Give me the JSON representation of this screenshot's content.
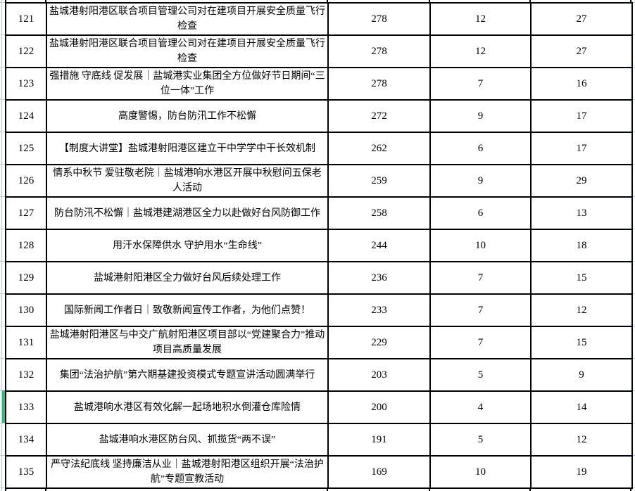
{
  "table": {
    "highlighted_row": "133",
    "rows": [
      {
        "no": "121",
        "title": "盐城港射阳港区联合项目管理公司对在建项目开展安全质量飞行检查",
        "m1": "278",
        "m2": "12",
        "m3": "27"
      },
      {
        "no": "122",
        "title": "盐城港射阳港区联合项目管理公司对在建项目开展安全质量飞行检查",
        "m1": "278",
        "m2": "12",
        "m3": "27"
      },
      {
        "no": "123",
        "title": "强措施 守底线 促发展｜盐城港实业集团全方位做好节日期间“三位一体”工作",
        "m1": "278",
        "m2": "7",
        "m3": "16"
      },
      {
        "no": "124",
        "title": "高度警惕，防台防汛工作不松懈",
        "m1": "272",
        "m2": "9",
        "m3": "17"
      },
      {
        "no": "125",
        "title": "【制度大讲堂】盐城港射阳港区建立干中学学中干长效机制",
        "m1": "262",
        "m2": "6",
        "m3": "17"
      },
      {
        "no": "126",
        "title": "情系中秋节 爱驻敬老院｜盐城港响水港区开展中秋慰问五保老人活动",
        "m1": "259",
        "m2": "9",
        "m3": "29"
      },
      {
        "no": "127",
        "title": "防台防汛不松懈｜盐城港建湖港区全力以赴做好台风防御工作",
        "m1": "258",
        "m2": "6",
        "m3": "13"
      },
      {
        "no": "128",
        "title": "用汗水保障供水 守护用水“生命线”",
        "m1": "244",
        "m2": "10",
        "m3": "18"
      },
      {
        "no": "129",
        "title": "盐城港射阳港区全力做好台风后续处理工作",
        "m1": "236",
        "m2": "7",
        "m3": "15"
      },
      {
        "no": "130",
        "title": "国际新闻工作者日｜致敬新闻宣传工作者，为他们点赞！",
        "m1": "233",
        "m2": "7",
        "m3": "12"
      },
      {
        "no": "131",
        "title": "盐城港射阳港区与中交广航射阳港区项目部以“党建聚合力”推动项目高质量发展",
        "m1": "229",
        "m2": "7",
        "m3": "15"
      },
      {
        "no": "132",
        "title": "集团“法治护航”第六期基建投资模式专题宣讲活动圆满举行",
        "m1": "203",
        "m2": "5",
        "m3": "9"
      },
      {
        "no": "133",
        "title": "盐城港响水港区有效化解一起场地积水倒灌仓库险情",
        "m1": "200",
        "m2": "4",
        "m3": "14"
      },
      {
        "no": "134",
        "title": "盐城港响水港区防台风、抓揽货“两不误”",
        "m1": "191",
        "m2": "5",
        "m3": "12"
      },
      {
        "no": "135",
        "title": "严守法纪底线 坚持廉洁从业｜盐城港射阳港区组织开展“法治护航”专题宣教活动",
        "m1": "169",
        "m2": "10",
        "m3": "19"
      }
    ]
  },
  "colors": {
    "marker_green": "#2abe84",
    "gridline_blue": "#b9c9e0",
    "border_black": "#000000"
  }
}
